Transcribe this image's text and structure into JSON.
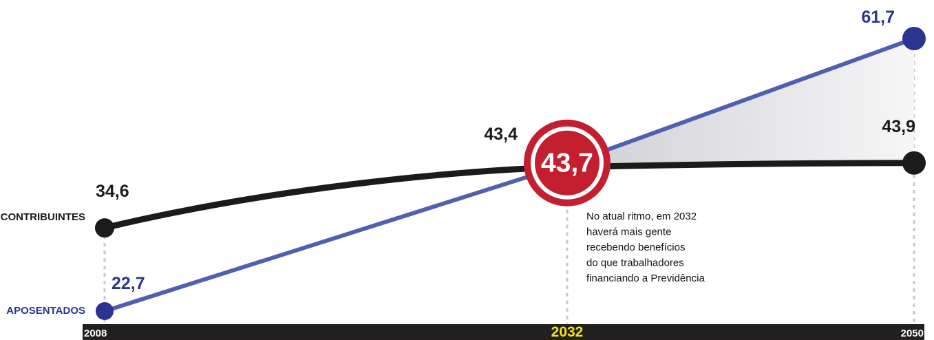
{
  "chart_data": {
    "type": "line",
    "x": [
      2008,
      2032,
      2050
    ],
    "series": [
      {
        "name": "CONTRIBUINTES",
        "values": [
          34.6,
          43.4,
          43.9
        ],
        "value_labels": [
          "34,6",
          "43,4",
          "43,9"
        ],
        "color": "#1c1a1b"
      },
      {
        "name": "APOSENTADOS",
        "values": [
          22.7,
          43.7,
          61.7
        ],
        "value_labels": [
          "22,7",
          "43,7",
          "61,7"
        ],
        "color": "#2b3590"
      }
    ],
    "x_tick_labels": [
      "2008",
      "2032",
      "2050"
    ],
    "crossover": {
      "x": 2032,
      "label": "43,7"
    },
    "annotation": [
      "No atual ritmo, em 2032",
      "haverá mais gente",
      "recebendo benefícios",
      "do que trabalhadores",
      "financiando a Previdência"
    ]
  },
  "colors": {
    "contribuintes": "#1c1a1b",
    "aposentados": "#2b3590",
    "aposentados_line": "#5060b0",
    "highlight": "#c41f2f",
    "axis_bar": "#221f20",
    "highlight_tick": "#f4e31b",
    "gap_fill": "#e6e6e8"
  }
}
